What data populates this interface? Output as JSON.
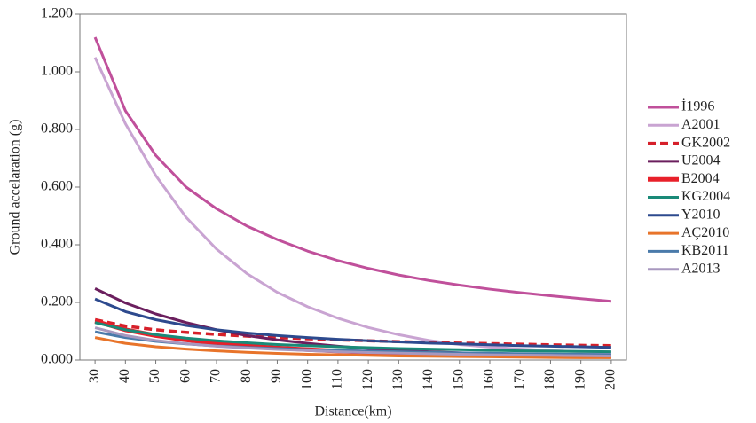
{
  "chart_data": {
    "type": "line",
    "y_label": "Ground accelaration (g)",
    "x_label": "Distance(km)",
    "x": [
      30,
      40,
      50,
      60,
      70,
      80,
      90,
      100,
      110,
      120,
      130,
      140,
      150,
      160,
      170,
      180,
      190,
      200
    ],
    "xlim": [
      25,
      205
    ],
    "xticks": [
      30,
      40,
      50,
      60,
      70,
      80,
      90,
      100,
      110,
      120,
      130,
      140,
      150,
      160,
      170,
      180,
      190,
      200
    ],
    "ylim": [
      0,
      1.2
    ],
    "yticks": [
      {
        "value": 0,
        "label": "0.000"
      },
      {
        "value": 0.2,
        "label": "0.200"
      },
      {
        "value": 0.4,
        "label": "0.400"
      },
      {
        "value": 0.6,
        "label": "0.600"
      },
      {
        "value": 0.8,
        "label": "0.800"
      },
      {
        "value": 1.0,
        "label": "1.000"
      },
      {
        "value": 1.2,
        "label": "1.200"
      }
    ],
    "grid": false,
    "legend": "right",
    "series": [
      {
        "name": "İ1996",
        "color": "#c0509b",
        "style": "solid",
        "values": [
          1.12,
          0.865,
          0.71,
          0.6,
          0.525,
          0.465,
          0.418,
          0.378,
          0.345,
          0.318,
          0.295,
          0.276,
          0.26,
          0.246,
          0.234,
          0.223,
          0.213,
          0.204
        ]
      },
      {
        "name": "A2001",
        "color": "#c9a4d2",
        "style": "solid",
        "values": [
          1.05,
          0.82,
          0.64,
          0.495,
          0.385,
          0.3,
          0.235,
          0.185,
          0.145,
          0.113,
          0.088,
          0.068,
          0.054,
          0.045,
          0.038,
          0.033,
          0.029,
          0.026
        ]
      },
      {
        "name": "GK2002",
        "color": "#d6202a",
        "style": "dashed",
        "values": [
          0.14,
          0.118,
          0.105,
          0.096,
          0.089,
          0.083,
          0.078,
          0.074,
          0.07,
          0.067,
          0.064,
          0.061,
          0.059,
          0.057,
          0.055,
          0.053,
          0.051,
          0.05
        ]
      },
      {
        "name": "U2004",
        "color": "#6b1f5e",
        "style": "solid",
        "values": [
          0.248,
          0.198,
          0.16,
          0.13,
          0.105,
          0.085,
          0.07,
          0.058,
          0.048,
          0.04,
          0.034,
          0.029,
          0.025,
          0.022,
          0.019,
          0.017,
          0.015,
          0.013
        ]
      },
      {
        "name": "B2004",
        "color": "#e8202a",
        "style": "thick",
        "values": [
          0.135,
          0.105,
          0.085,
          0.07,
          0.058,
          0.049,
          0.042,
          0.036,
          0.031,
          0.027,
          0.024,
          0.021,
          0.019,
          0.017,
          0.015,
          0.014,
          0.013,
          0.012
        ]
      },
      {
        "name": "KG2004",
        "color": "#1a8a78",
        "style": "solid",
        "values": [
          0.13,
          0.105,
          0.088,
          0.076,
          0.067,
          0.06,
          0.054,
          0.05,
          0.046,
          0.043,
          0.04,
          0.038,
          0.036,
          0.034,
          0.032,
          0.031,
          0.03,
          0.029
        ]
      },
      {
        "name": "Y2010",
        "color": "#2d4a8e",
        "style": "solid",
        "values": [
          0.212,
          0.168,
          0.14,
          0.12,
          0.105,
          0.094,
          0.085,
          0.078,
          0.072,
          0.067,
          0.063,
          0.059,
          0.056,
          0.053,
          0.05,
          0.048,
          0.046,
          0.044
        ]
      },
      {
        "name": "AÇ2010",
        "color": "#e8742a",
        "style": "solid",
        "values": [
          0.078,
          0.058,
          0.046,
          0.038,
          0.032,
          0.027,
          0.023,
          0.02,
          0.018,
          0.016,
          0.014,
          0.013,
          0.012,
          0.011,
          0.01,
          0.009,
          0.008,
          0.008
        ]
      },
      {
        "name": "KB2011",
        "color": "#4a7aaa",
        "style": "solid",
        "values": [
          0.098,
          0.078,
          0.065,
          0.056,
          0.049,
          0.044,
          0.04,
          0.036,
          0.033,
          0.031,
          0.029,
          0.027,
          0.025,
          0.024,
          0.022,
          0.021,
          0.02,
          0.019
        ]
      },
      {
        "name": "A2013",
        "color": "#a898bf",
        "style": "solid",
        "values": [
          0.112,
          0.085,
          0.068,
          0.057,
          0.048,
          0.042,
          0.037,
          0.033,
          0.029,
          0.026,
          0.024,
          0.022,
          0.02,
          0.018,
          0.017,
          0.016,
          0.015,
          0.014
        ]
      }
    ]
  }
}
